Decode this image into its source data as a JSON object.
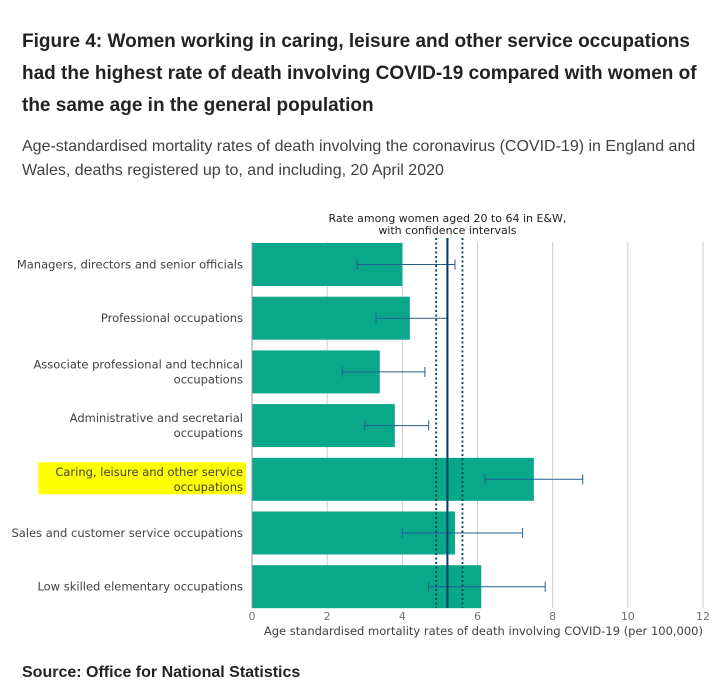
{
  "header": {
    "title": "Figure 4: Women working in caring, leisure and other service occupations had the highest rate of death involving COVID-19 compared with women of the same age in the general population",
    "subtitle": "Age-standardised mortality rates of death involving the coronavirus (COVID-19) in England and Wales, deaths registered up to, and including, 20 April 2020"
  },
  "footer": {
    "source": "Source: Office for National Statistics"
  },
  "chart_data": {
    "type": "bar",
    "orientation": "horizontal",
    "categories": [
      [
        "Managers, directors and senior officials"
      ],
      [
        "Professional occupations"
      ],
      [
        "Associate professional and technical",
        "occupations"
      ],
      [
        "Administrative and secretarial",
        "occupations"
      ],
      [
        "Caring, leisure and other service",
        "occupations"
      ],
      [
        "Sales and customer service occupations"
      ],
      [
        "Low skilled elementary occupations"
      ]
    ],
    "highlighted_category": 4,
    "values": [
      4.0,
      4.2,
      3.4,
      3.8,
      7.5,
      5.4,
      6.1
    ],
    "ci_lower": [
      2.8,
      3.3,
      2.4,
      3.0,
      6.2,
      4.0,
      4.7
    ],
    "ci_upper": [
      5.4,
      5.2,
      4.6,
      4.7,
      8.8,
      7.2,
      7.8
    ],
    "reference": {
      "label_lines": [
        "Rate among women aged 20 to 64 in E&W,",
        "with confidence intervals"
      ],
      "value": 5.2,
      "ci_lower": 4.9,
      "ci_upper": 5.6
    },
    "xlabel": "Age standardised mortality rates of death involving COVID-19 (per 100,000)",
    "xlim": [
      0,
      12
    ],
    "xticks": [
      0,
      2,
      4,
      6,
      8,
      10,
      12
    ],
    "grid": true,
    "colors": {
      "bar": "#0aa88a",
      "error_bar": "#206095",
      "reference_line": "#003c57",
      "grid": "#cccccc",
      "highlight": "#ffff00"
    }
  }
}
